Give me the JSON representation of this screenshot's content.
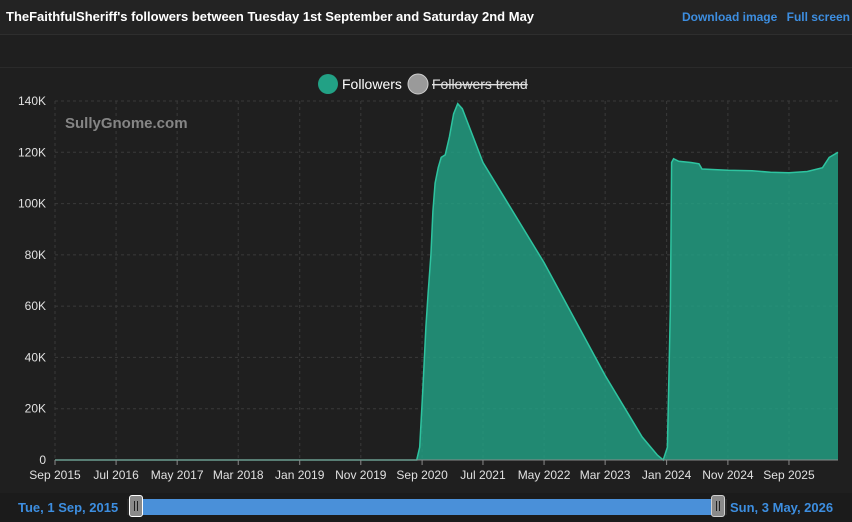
{
  "header": {
    "title": "TheFaithfulSheriff's followers between Tuesday 1st September and Saturday 2nd May",
    "download_label": "Download image",
    "fullscreen_label": "Full screen"
  },
  "watermark": "SullyGnome.com",
  "navigator": {
    "start_label": "Tue, 1 Sep, 2015",
    "end_label": "Sun, 3 May, 2026"
  },
  "chart_data": {
    "type": "area",
    "legend": [
      {
        "name": "Followers",
        "color": "#22a185",
        "active": true
      },
      {
        "name": "Followers trend",
        "color": "#9a9a9a",
        "active": false
      }
    ],
    "legend_position": "top-center",
    "grid": true,
    "ylim": [
      0,
      140000
    ],
    "yticks": [
      0,
      20000,
      40000,
      60000,
      80000,
      100000,
      120000,
      140000
    ],
    "ytick_labels": [
      "0",
      "20K",
      "40K",
      "60K",
      "80K",
      "100K",
      "120K",
      "140K"
    ],
    "xlim": [
      "2015-09-01",
      "2026-05-03"
    ],
    "xticks": [
      "2015-09-01",
      "2016-07-01",
      "2017-05-01",
      "2018-03-01",
      "2019-01-01",
      "2019-11-01",
      "2020-09-01",
      "2021-07-01",
      "2022-05-01",
      "2023-03-01",
      "2024-01-01",
      "2024-11-01",
      "2025-09-01"
    ],
    "xtick_labels": [
      "Sep 2015",
      "Jul 2016",
      "May 2017",
      "Mar 2018",
      "Jan 2019",
      "Nov 2019",
      "Sep 2020",
      "Jul 2021",
      "May 2022",
      "Mar 2023",
      "Jan 2024",
      "Nov 2024",
      "Sep 2025"
    ],
    "series": [
      {
        "name": "Followers",
        "color": "#22a185",
        "points": [
          [
            "2015-09-01",
            0
          ],
          [
            "2020-08-05",
            0
          ],
          [
            "2020-08-20",
            5000
          ],
          [
            "2020-09-05",
            28000
          ],
          [
            "2020-09-20",
            52000
          ],
          [
            "2020-10-01",
            65000
          ],
          [
            "2020-10-15",
            80000
          ],
          [
            "2020-10-25",
            97000
          ],
          [
            "2020-11-05",
            108000
          ],
          [
            "2020-11-20",
            114000
          ],
          [
            "2020-12-05",
            118000
          ],
          [
            "2020-12-25",
            119000
          ],
          [
            "2021-01-15",
            126000
          ],
          [
            "2021-02-05",
            135000
          ],
          [
            "2021-02-25",
            139000
          ],
          [
            "2021-03-20",
            137000
          ],
          [
            "2021-07-01",
            116000
          ],
          [
            "2022-05-01",
            77000
          ],
          [
            "2023-03-01",
            33000
          ],
          [
            "2023-09-01",
            9000
          ],
          [
            "2023-11-15",
            2000
          ],
          [
            "2023-12-15",
            0
          ],
          [
            "2024-01-05",
            5000
          ],
          [
            "2024-01-20",
            60000
          ],
          [
            "2024-01-26",
            116000
          ],
          [
            "2024-02-05",
            117500
          ],
          [
            "2024-03-01",
            116500
          ],
          [
            "2024-05-01",
            116000
          ],
          [
            "2024-06-10",
            115500
          ],
          [
            "2024-06-25",
            113500
          ],
          [
            "2024-11-01",
            113000
          ],
          [
            "2025-03-01",
            112800
          ],
          [
            "2025-06-01",
            112200
          ],
          [
            "2025-09-01",
            112000
          ],
          [
            "2025-12-01",
            112500
          ],
          [
            "2026-02-15",
            114000
          ],
          [
            "2026-03-20",
            118000
          ],
          [
            "2026-05-03",
            120000
          ]
        ]
      }
    ]
  }
}
